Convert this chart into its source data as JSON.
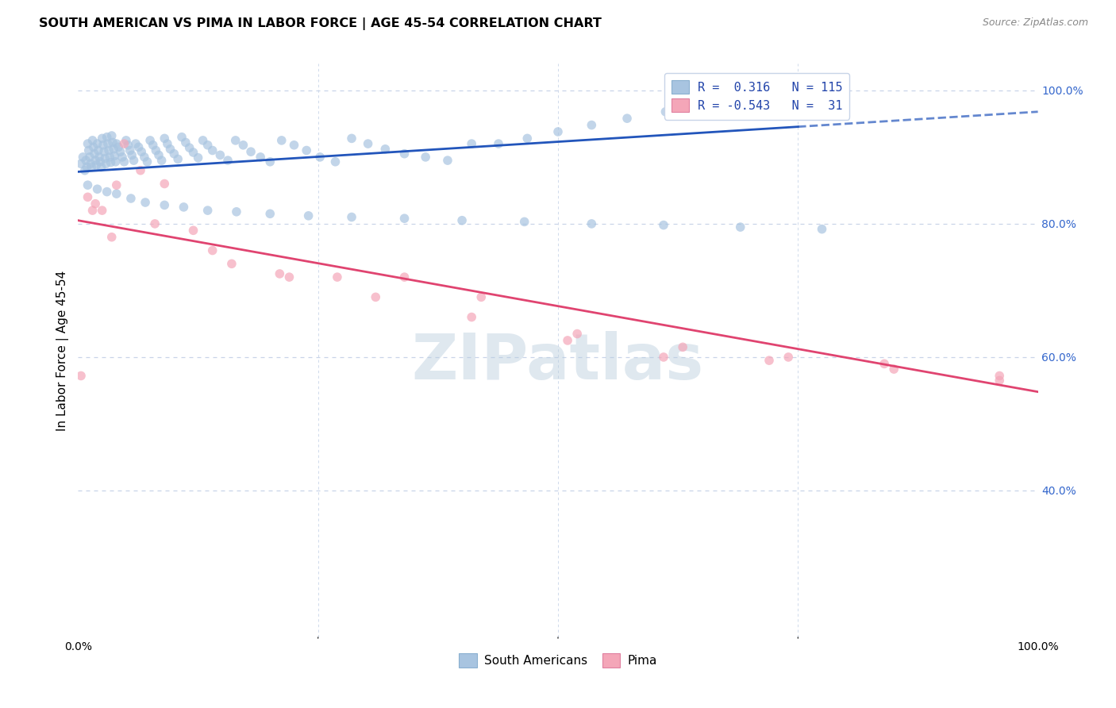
{
  "title": "SOUTH AMERICAN VS PIMA IN LABOR FORCE | AGE 45-54 CORRELATION CHART",
  "source": "Source: ZipAtlas.com",
  "ylabel": "In Labor Force | Age 45-54",
  "legend_sa": "South Americans",
  "legend_pima": "Pima",
  "R_sa": 0.316,
  "N_sa": 115,
  "R_pima": -0.543,
  "N_pima": 31,
  "sa_color": "#a8c4e0",
  "pima_color": "#f4a6b8",
  "trend_sa_color": "#2255bb",
  "trend_pima_color": "#e04470",
  "watermark": "ZIPatlas",
  "xlim": [
    0.0,
    1.0
  ],
  "ylim": [
    0.18,
    1.04
  ],
  "ytick_positions": [
    0.4,
    0.6,
    0.8,
    1.0
  ],
  "ytick_labels": [
    "40.0%",
    "60.0%",
    "80.0%",
    "100.0%"
  ],
  "grid_color": "#c8d4e8",
  "dot_size": 70,
  "dot_alpha": 0.7,
  "sa_trend_x0": 0.0,
  "sa_trend_x_solid_end": 0.75,
  "sa_trend_x1": 1.0,
  "sa_trend_y0": 0.878,
  "sa_trend_y1": 0.968,
  "pima_trend_x0": 0.0,
  "pima_trend_x1": 1.0,
  "pima_trend_y0": 0.805,
  "pima_trend_y1": 0.548,
  "sa_points_x": [
    0.003,
    0.005,
    0.007,
    0.008,
    0.009,
    0.01,
    0.011,
    0.012,
    0.013,
    0.014,
    0.015,
    0.016,
    0.017,
    0.018,
    0.019,
    0.02,
    0.021,
    0.022,
    0.023,
    0.024,
    0.025,
    0.026,
    0.027,
    0.028,
    0.029,
    0.03,
    0.031,
    0.032,
    0.033,
    0.034,
    0.035,
    0.036,
    0.037,
    0.038,
    0.039,
    0.04,
    0.042,
    0.044,
    0.046,
    0.048,
    0.05,
    0.052,
    0.054,
    0.056,
    0.058,
    0.06,
    0.063,
    0.066,
    0.069,
    0.072,
    0.075,
    0.078,
    0.081,
    0.084,
    0.087,
    0.09,
    0.093,
    0.096,
    0.1,
    0.104,
    0.108,
    0.112,
    0.116,
    0.12,
    0.125,
    0.13,
    0.135,
    0.14,
    0.148,
    0.156,
    0.164,
    0.172,
    0.18,
    0.19,
    0.2,
    0.212,
    0.225,
    0.238,
    0.252,
    0.268,
    0.285,
    0.302,
    0.32,
    0.34,
    0.362,
    0.385,
    0.41,
    0.438,
    0.468,
    0.5,
    0.535,
    0.572,
    0.612,
    0.655,
    0.7,
    0.748,
    0.01,
    0.02,
    0.03,
    0.04,
    0.055,
    0.07,
    0.09,
    0.11,
    0.135,
    0.165,
    0.2,
    0.24,
    0.285,
    0.34,
    0.4,
    0.465,
    0.535,
    0.61,
    0.69,
    0.775
  ],
  "sa_points_y": [
    0.89,
    0.9,
    0.88,
    0.895,
    0.885,
    0.92,
    0.91,
    0.9,
    0.89,
    0.885,
    0.925,
    0.915,
    0.905,
    0.895,
    0.888,
    0.92,
    0.91,
    0.9,
    0.893,
    0.885,
    0.928,
    0.918,
    0.908,
    0.898,
    0.89,
    0.93,
    0.92,
    0.91,
    0.9,
    0.892,
    0.932,
    0.922,
    0.912,
    0.902,
    0.893,
    0.92,
    0.915,
    0.908,
    0.9,
    0.893,
    0.925,
    0.918,
    0.91,
    0.903,
    0.895,
    0.92,
    0.915,
    0.908,
    0.9,
    0.893,
    0.925,
    0.918,
    0.91,
    0.903,
    0.895,
    0.928,
    0.92,
    0.912,
    0.905,
    0.897,
    0.93,
    0.922,
    0.914,
    0.907,
    0.899,
    0.925,
    0.918,
    0.91,
    0.903,
    0.895,
    0.925,
    0.918,
    0.908,
    0.9,
    0.893,
    0.925,
    0.918,
    0.91,
    0.9,
    0.893,
    0.928,
    0.92,
    0.912,
    0.905,
    0.9,
    0.895,
    0.92,
    0.92,
    0.928,
    0.938,
    0.948,
    0.958,
    0.968,
    0.975,
    0.978,
    0.98,
    0.858,
    0.852,
    0.848,
    0.845,
    0.838,
    0.832,
    0.828,
    0.825,
    0.82,
    0.818,
    0.815,
    0.812,
    0.81,
    0.808,
    0.805,
    0.803,
    0.8,
    0.798,
    0.795,
    0.792
  ],
  "pima_points_x": [
    0.003,
    0.01,
    0.018,
    0.025,
    0.035,
    0.048,
    0.065,
    0.09,
    0.12,
    0.16,
    0.21,
    0.27,
    0.34,
    0.42,
    0.51,
    0.61,
    0.72,
    0.84,
    0.96,
    0.015,
    0.04,
    0.08,
    0.14,
    0.22,
    0.31,
    0.41,
    0.52,
    0.63,
    0.74,
    0.85,
    0.96
  ],
  "pima_points_y": [
    0.572,
    0.84,
    0.83,
    0.82,
    0.78,
    0.92,
    0.88,
    0.86,
    0.79,
    0.74,
    0.725,
    0.72,
    0.72,
    0.69,
    0.625,
    0.6,
    0.595,
    0.59,
    0.572,
    0.82,
    0.858,
    0.8,
    0.76,
    0.72,
    0.69,
    0.66,
    0.635,
    0.615,
    0.6,
    0.582,
    0.565
  ]
}
